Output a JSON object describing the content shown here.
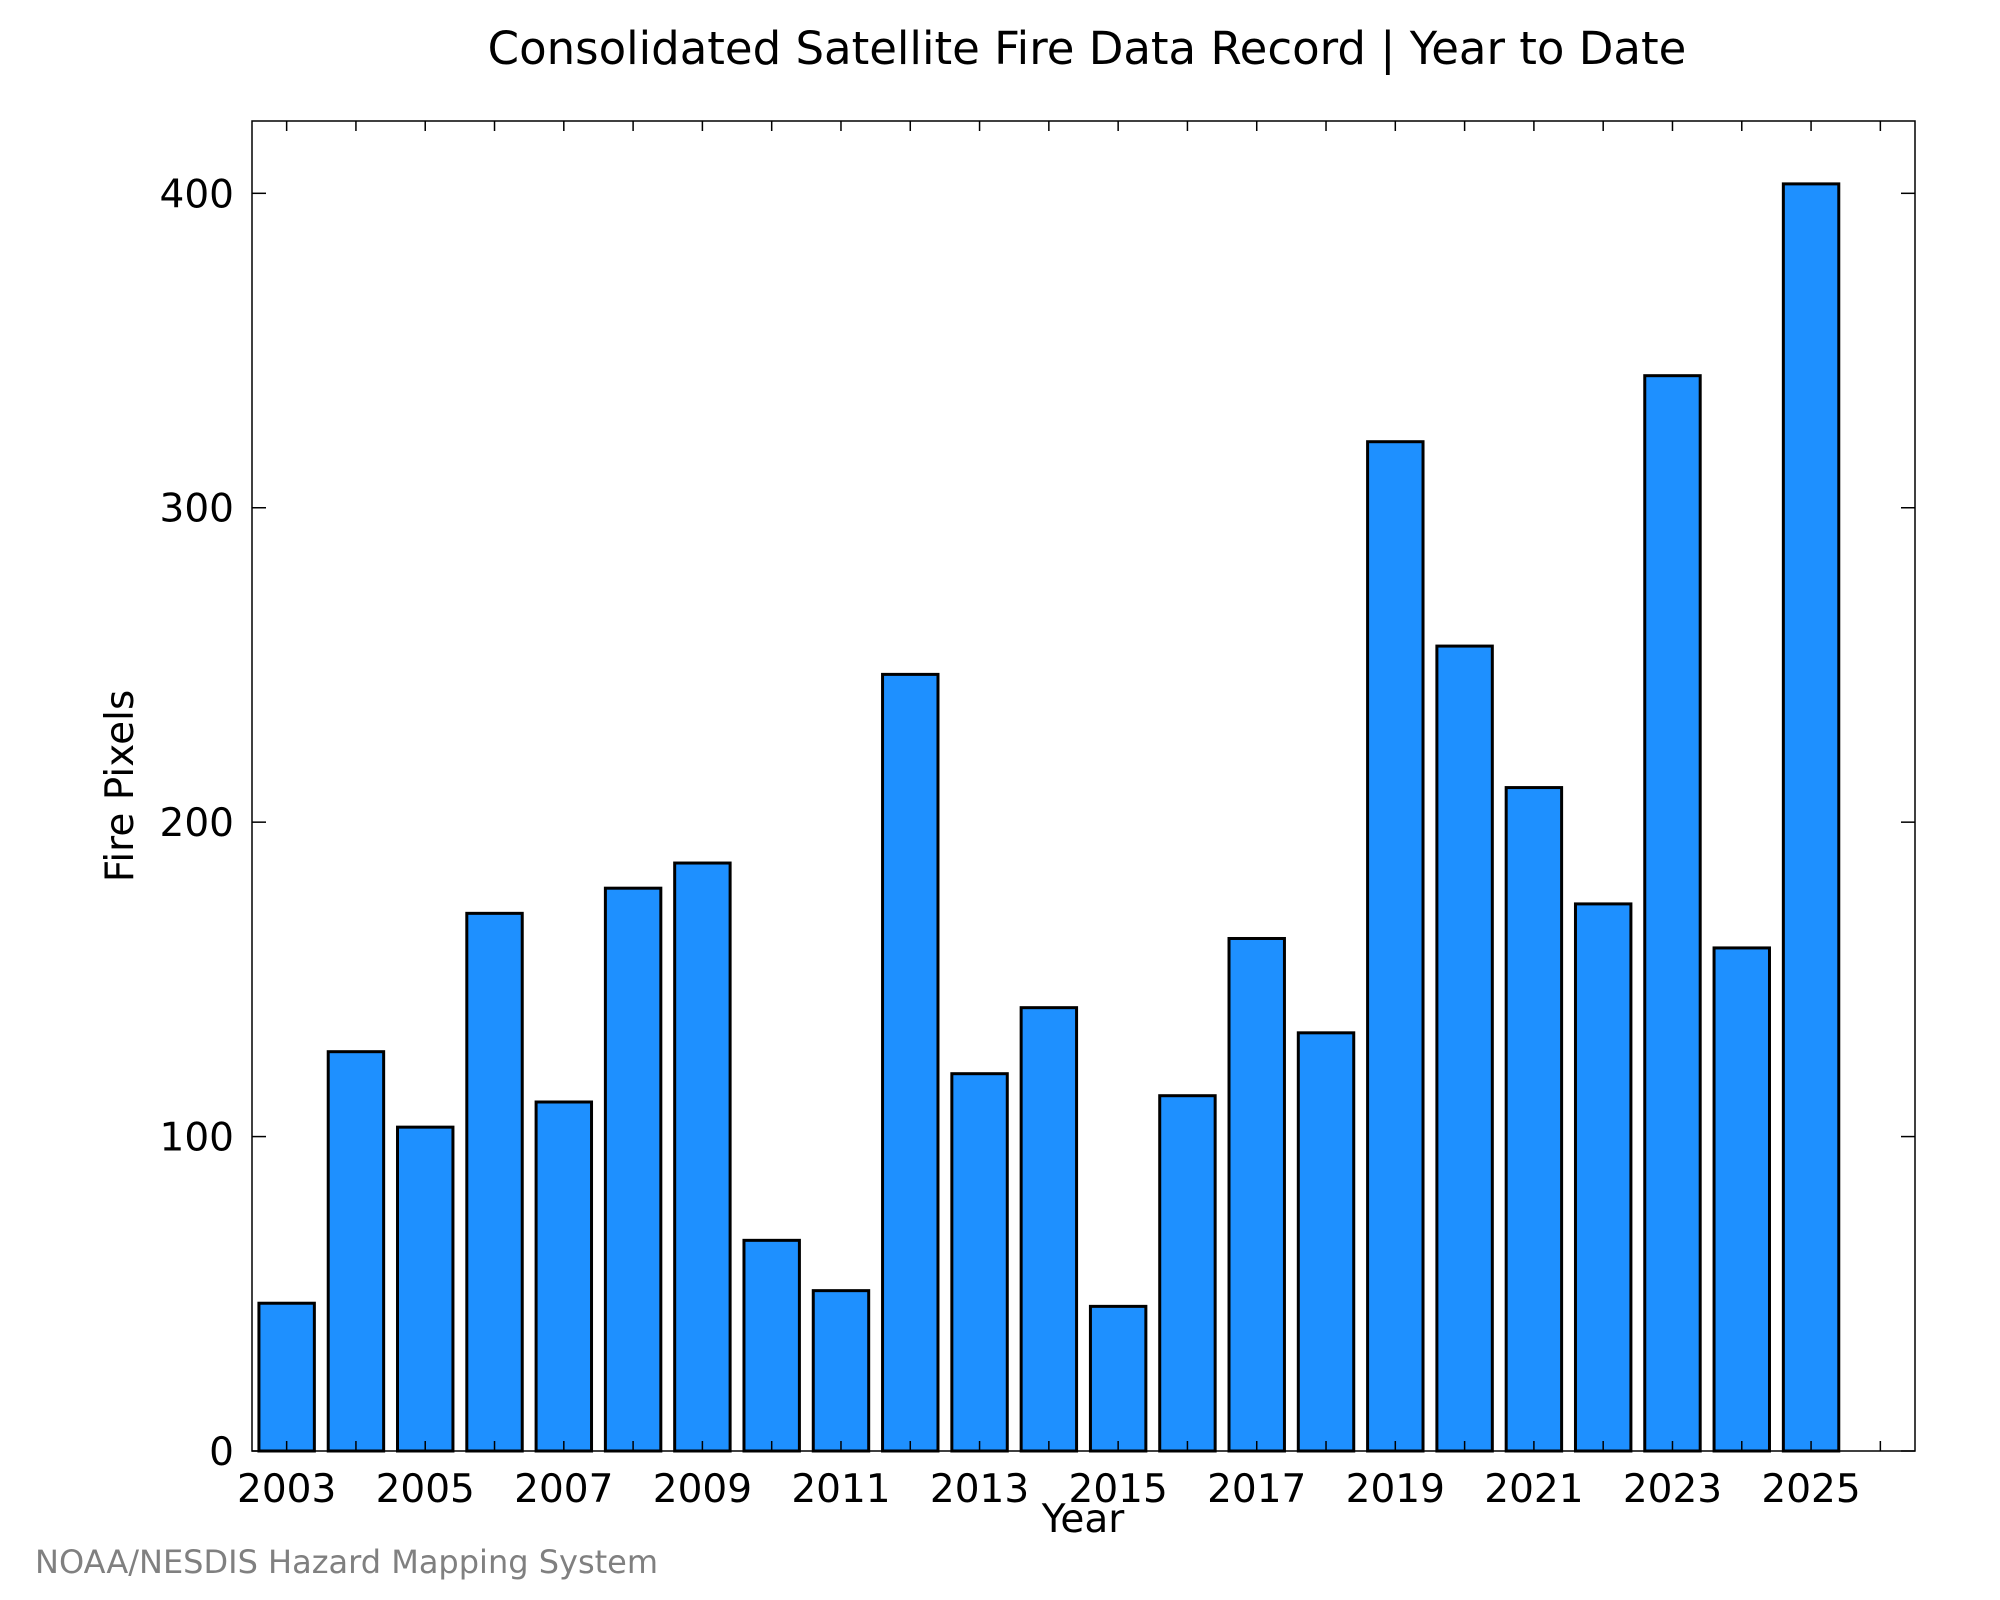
{
  "chart_data": {
    "type": "bar",
    "title": "Consolidated Satellite Fire Data Record | Year to Date",
    "xlabel": "Year",
    "ylabel": "Fire Pixels",
    "credit": "NOAA/NESDIS Hazard Mapping System",
    "bar_color": "#1E90FF",
    "categories": [
      "2003",
      "2004",
      "2005",
      "2006",
      "2007",
      "2008",
      "2009",
      "2010",
      "2011",
      "2012",
      "2013",
      "2014",
      "2015",
      "2016",
      "2017",
      "2018",
      "2019",
      "2020",
      "2021",
      "2022",
      "2023",
      "2024",
      "2025"
    ],
    "values": [
      47,
      127,
      103,
      171,
      111,
      179,
      187,
      67,
      51,
      247,
      120,
      141,
      46,
      113,
      163,
      133,
      321,
      256,
      211,
      174,
      342,
      160,
      403
    ],
    "xlim": [
      2002.5,
      2026.5
    ],
    "ylim": [
      0,
      423
    ],
    "yticks": [
      0,
      100,
      200,
      300,
      400
    ],
    "xtick_labels": [
      "2003",
      "2005",
      "2007",
      "2009",
      "2011",
      "2013",
      "2015",
      "2017",
      "2019",
      "2021",
      "2023",
      "2025"
    ],
    "grid": false,
    "legend": "none"
  }
}
